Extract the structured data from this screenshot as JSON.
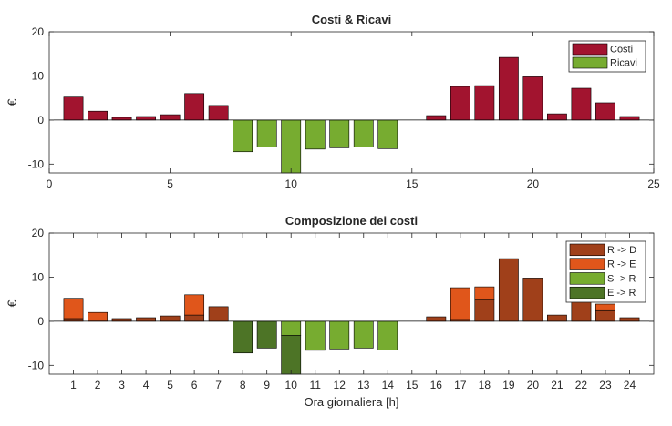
{
  "chart_data": [
    {
      "type": "bar",
      "title": "Costi & Ricavi",
      "ylabel": "€",
      "xlabel": "",
      "xlim": [
        0,
        25
      ],
      "ylim": [
        -12,
        20
      ],
      "xticks": [
        0,
        5,
        10,
        15,
        20,
        25
      ],
      "yticks": [
        -10,
        0,
        10,
        20
      ],
      "legend_position": "top-right",
      "x": [
        1,
        2,
        3,
        4,
        5,
        6,
        7,
        8,
        9,
        10,
        11,
        12,
        13,
        14,
        15,
        16,
        17,
        18,
        19,
        20,
        21,
        22,
        23,
        24
      ],
      "series": [
        {
          "name": "Costi",
          "color": "#A2142F",
          "values": [
            5.2,
            2.0,
            0.6,
            0.8,
            1.2,
            6.0,
            3.3,
            0,
            0,
            0,
            0,
            0,
            0,
            0,
            0,
            1.0,
            7.6,
            7.8,
            14.2,
            9.8,
            1.4,
            7.2,
            3.9,
            0.8
          ]
        },
        {
          "name": "Ricavi",
          "color": "#77AC30",
          "values": [
            0,
            0,
            0,
            0,
            0,
            0,
            0,
            -7.2,
            -6.1,
            -12,
            -6.6,
            -6.3,
            -6.1,
            -6.5,
            0,
            0,
            0,
            0,
            0,
            0,
            0,
            0,
            0,
            0
          ]
        }
      ]
    },
    {
      "type": "bar",
      "title": "Composizione dei costi",
      "ylabel": "€",
      "xlabel": "Ora giornaliera [h]",
      "xlim": [
        0,
        25
      ],
      "ylim": [
        -12,
        20
      ],
      "xticks": [
        1,
        2,
        3,
        4,
        5,
        6,
        7,
        8,
        9,
        10,
        11,
        12,
        13,
        14,
        15,
        16,
        17,
        18,
        19,
        20,
        21,
        22,
        23,
        24
      ],
      "yticks": [
        -10,
        0,
        10,
        20
      ],
      "legend_position": "top-right",
      "stacked": true,
      "x": [
        1,
        2,
        3,
        4,
        5,
        6,
        7,
        8,
        9,
        10,
        11,
        12,
        13,
        14,
        15,
        16,
        17,
        18,
        19,
        20,
        21,
        22,
        23,
        24
      ],
      "series": [
        {
          "name": "R -> D",
          "color": "#A0401A",
          "values": [
            0.6,
            0.3,
            0.6,
            0.8,
            1.2,
            1.4,
            3.3,
            0,
            0,
            0,
            0,
            0,
            0,
            0,
            0,
            1.0,
            0.4,
            4.8,
            14.2,
            9.8,
            1.4,
            4.8,
            2.4,
            0.8
          ]
        },
        {
          "name": "R -> E",
          "color": "#E0561B",
          "values": [
            4.6,
            1.7,
            0,
            0,
            0,
            4.6,
            0,
            0,
            0,
            0,
            0,
            0,
            0,
            0,
            0,
            0,
            7.2,
            3.0,
            0,
            0,
            0,
            2.4,
            1.5,
            0
          ]
        },
        {
          "name": "S -> R",
          "color": "#77AC30",
          "values": [
            0,
            0,
            0,
            0,
            0,
            0,
            0,
            0,
            0,
            -3.2,
            -6.6,
            -6.3,
            -6.1,
            -6.5,
            0,
            0,
            0,
            0,
            0,
            0,
            0,
            0,
            0,
            0
          ]
        },
        {
          "name": "E -> R",
          "color": "#4D7426",
          "values": [
            0,
            0,
            0,
            0,
            0,
            0,
            0,
            -7.2,
            -6.1,
            -8.8,
            0,
            0,
            0,
            0,
            0,
            0,
            0,
            0,
            0,
            0,
            0,
            0,
            0,
            0
          ]
        }
      ]
    }
  ]
}
